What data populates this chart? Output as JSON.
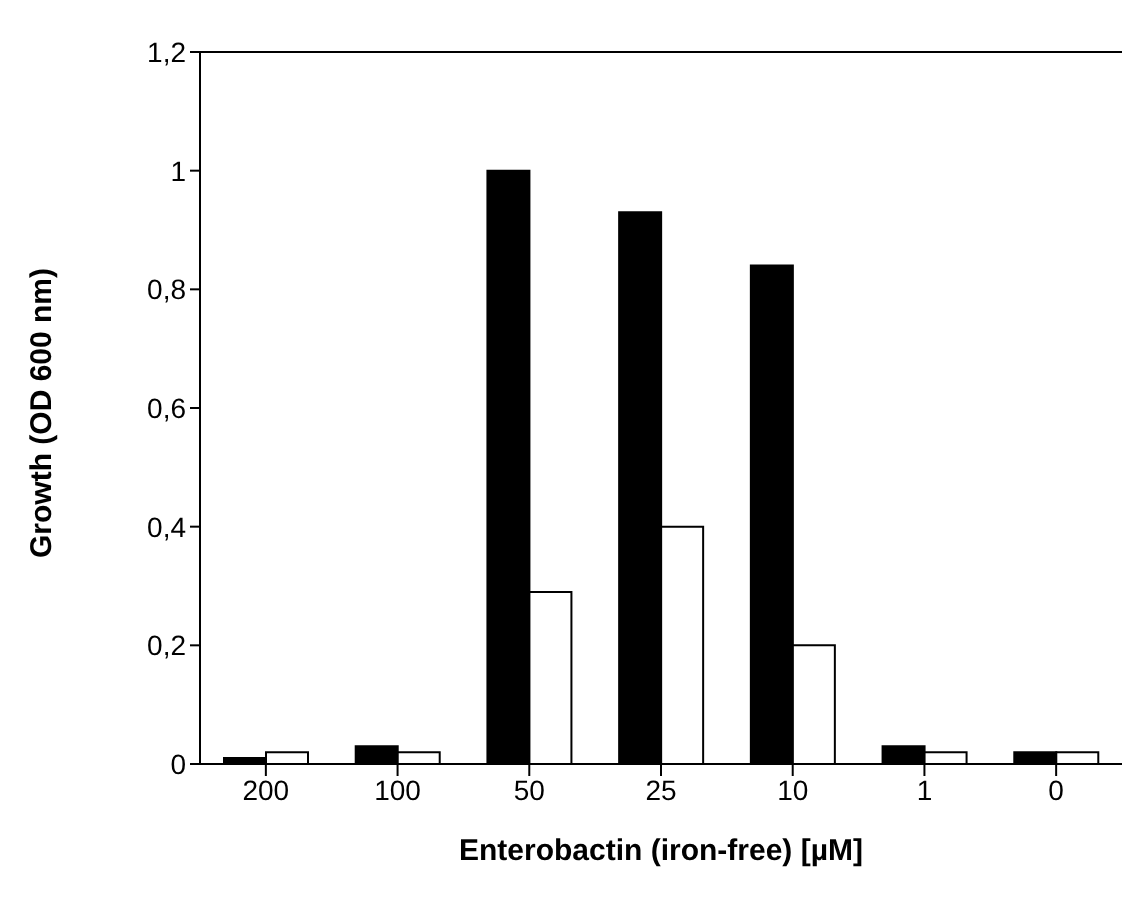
{
  "chart_data": {
    "type": "bar",
    "xlabel": "Enterobactin (iron-free) [µM]",
    "ylabel": "Growth (OD 600 nm)",
    "categories": [
      "200",
      "100",
      "50",
      "25",
      "10",
      "1",
      "0"
    ],
    "series": [
      {
        "color": "#000000",
        "values": [
          0.01,
          0.03,
          1.0,
          0.93,
          0.84,
          0.03,
          0.02
        ]
      },
      {
        "color": "#ffffff",
        "values": [
          0.02,
          0.02,
          0.29,
          0.4,
          0.2,
          0.02,
          0.02
        ]
      }
    ],
    "ylim": [
      0,
      1.2
    ],
    "yticks": [
      0,
      {
        "value": 0.2,
        "label": "0,2"
      },
      {
        "value": 0.4,
        "label": "0,4"
      },
      {
        "value": 0.6,
        "label": "0,6"
      },
      {
        "value": 0.8,
        "label": "0,8"
      },
      1,
      {
        "value": 1.2,
        "label": "1,2"
      }
    ],
    "grid": false,
    "legend": false
  }
}
